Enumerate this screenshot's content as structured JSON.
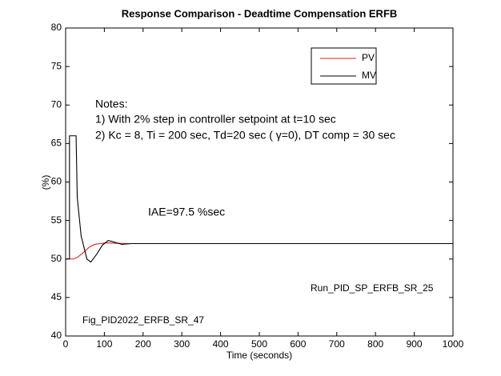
{
  "chart_data": {
    "type": "line",
    "title": "Response Comparison - Deadtime Compensation ERFB",
    "x_label": "Time (seconds)",
    "y_label": "(%)",
    "xlim": [
      0,
      1000
    ],
    "ylim": [
      40,
      80
    ],
    "xticks": [
      0,
      100,
      200,
      300,
      400,
      500,
      600,
      700,
      800,
      900,
      1000
    ],
    "yticks": [
      40,
      45,
      50,
      55,
      60,
      65,
      70,
      75,
      80
    ],
    "grid": false,
    "legend": "upper right",
    "series": [
      {
        "name": "PV",
        "color": "#e02020",
        "x": [
          0,
          20,
          30,
          45,
          60,
          75,
          90,
          105,
          130,
          160,
          209
        ],
        "values": [
          50,
          50,
          50.2,
          50.8,
          51.5,
          51.9,
          52,
          52.1,
          52.05,
          52,
          52
        ]
      },
      {
        "name": "MV",
        "color": "#000000",
        "x": [
          0,
          10,
          10,
          27,
          30,
          40,
          55,
          65,
          80,
          95,
          110,
          125,
          145,
          170,
          1000
        ],
        "values": [
          50,
          50,
          66,
          66,
          58,
          53,
          50,
          49.6,
          50.6,
          51.8,
          52.4,
          52.2,
          51.9,
          52,
          52
        ]
      }
    ],
    "annotations": [
      "Notes:",
      "1) With 2% step in controller setpoint at t=10 sec",
      "2) Kc = 8, Ti = 200 sec, Td=20 sec ( γ=0), DT comp = 30 sec",
      "IAE=97.5 %sec",
      "Run_PID_SP_ERFB_SR_25",
      "Fig_PID2022_ERFB_SR_47"
    ]
  }
}
